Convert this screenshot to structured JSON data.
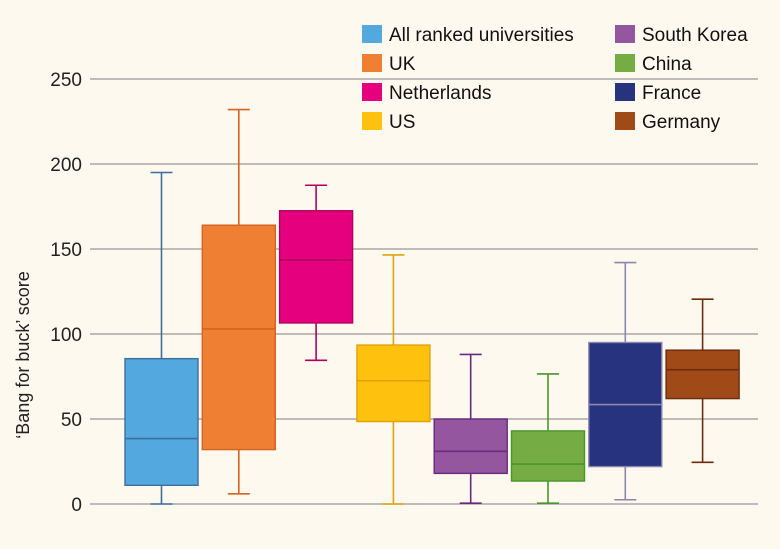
{
  "chart_data": {
    "type": "boxplot",
    "title": "",
    "xlabel": "",
    "ylabel": "‘Bang for buck’ score",
    "ylim": [
      0,
      250
    ],
    "yticks": [
      0,
      50,
      100,
      150,
      200,
      250
    ],
    "grid": "horizontal",
    "legend_placement": "top-right",
    "series": [
      {
        "name": "All ranked universities",
        "color": "#52a8df",
        "stroke": "#3e6f9b",
        "min": 0,
        "q1": 11,
        "median": 38.5,
        "q3": 85.5,
        "max": 195
      },
      {
        "name": "UK",
        "color": "#ef7f33",
        "stroke": "#d8621f",
        "min": 6,
        "q1": 32,
        "median": 103,
        "q3": 164,
        "max": 232
      },
      {
        "name": "Netherlands",
        "color": "#e5007d",
        "stroke": "#b0005e",
        "min": 84.5,
        "q1": 106.5,
        "median": 143.5,
        "q3": 172.5,
        "max": 187.5
      },
      {
        "name": "US",
        "color": "#fdc10e",
        "stroke": "#e0a20a",
        "min": 0,
        "q1": 48.5,
        "median": 72.5,
        "q3": 93.5,
        "max": 146.5
      },
      {
        "name": "South Korea",
        "color": "#93569f",
        "stroke": "#6a2a7d",
        "min": 0.5,
        "q1": 18,
        "median": 31,
        "q3": 50,
        "max": 88
      },
      {
        "name": "China",
        "color": "#75ad44",
        "stroke": "#4a962a",
        "min": 0.5,
        "q1": 13.5,
        "median": 23.5,
        "q3": 43,
        "max": 76.5
      },
      {
        "name": "France",
        "color": "#27337f",
        "stroke": "#8a86b0",
        "min": 2.5,
        "q1": 22,
        "median": 58.5,
        "q3": 95,
        "max": 142
      },
      {
        "name": "Germany",
        "color": "#a04a18",
        "stroke": "#6c2c0f",
        "min": 24.5,
        "q1": 62,
        "median": 79,
        "q3": 90.5,
        "max": 120.5
      }
    ]
  }
}
